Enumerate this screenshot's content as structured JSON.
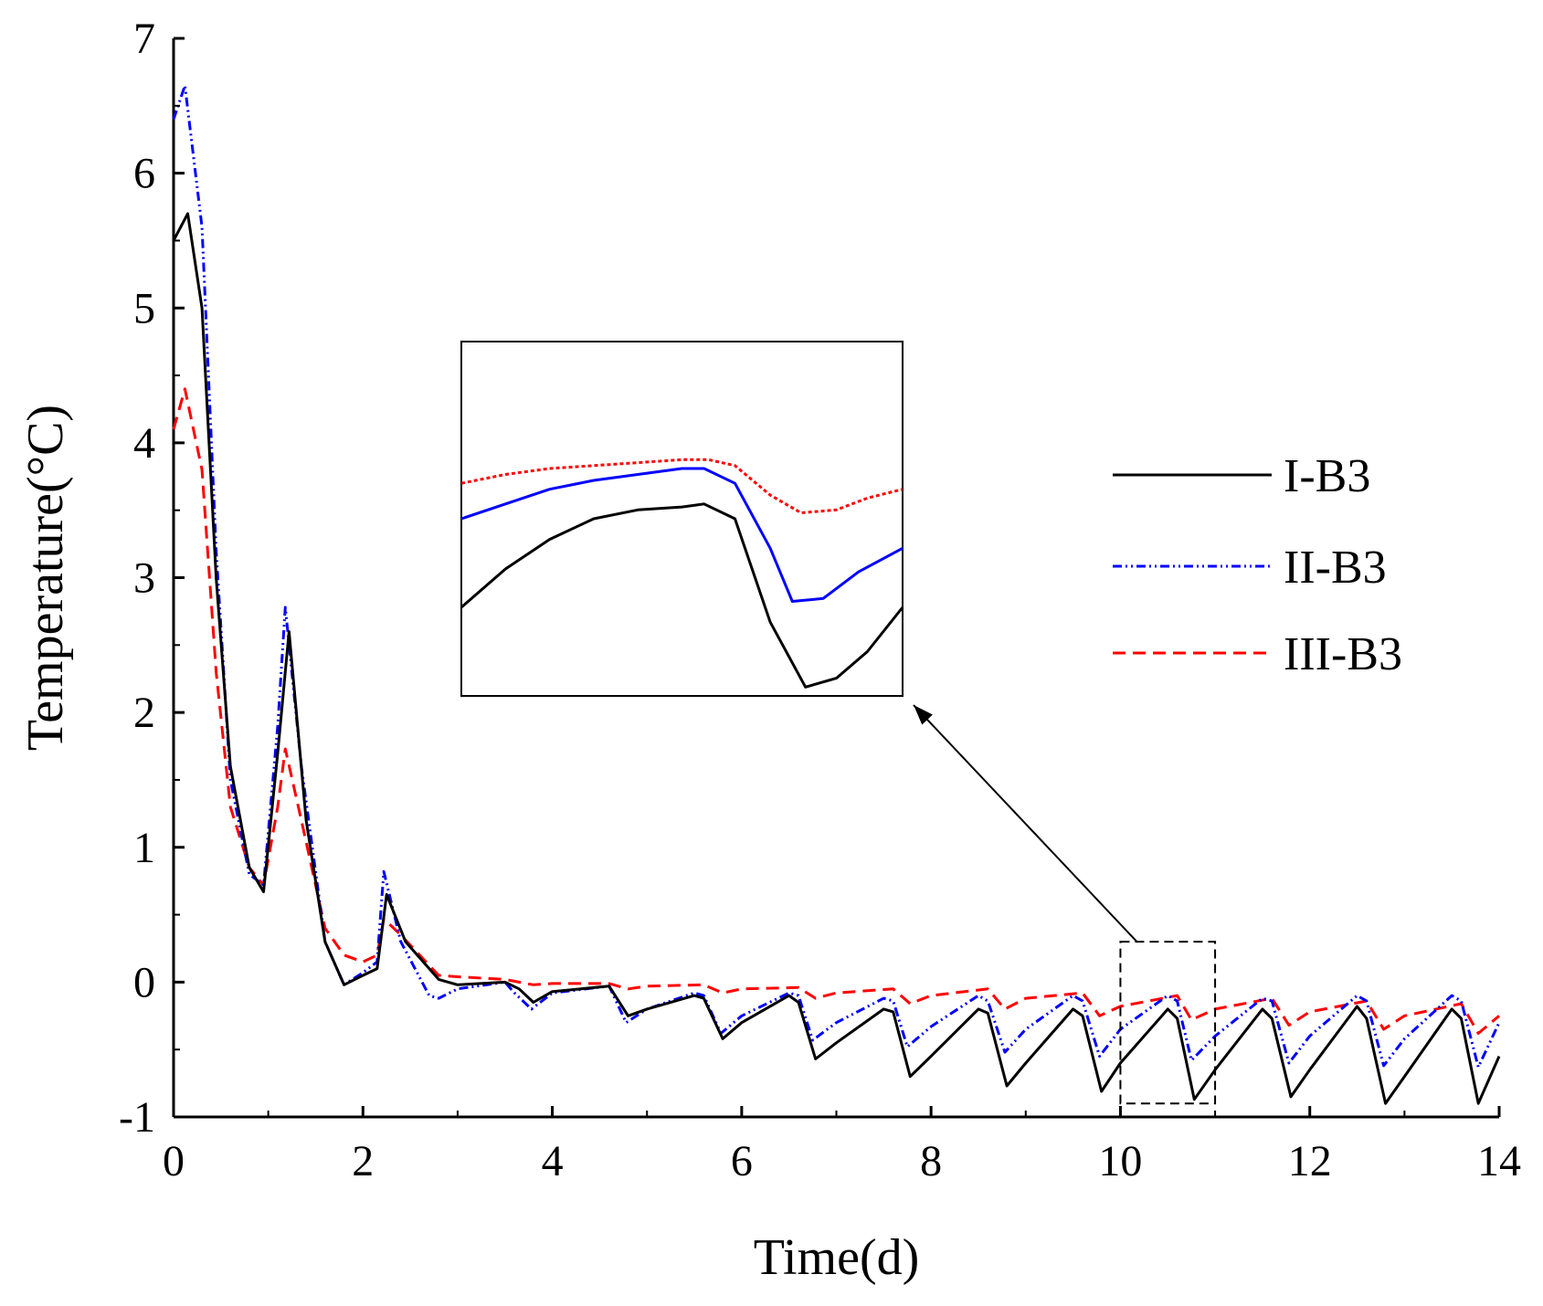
{
  "chart_data": {
    "type": "line",
    "title": "",
    "xlabel": "Time(d)",
    "ylabel": "Temperature(°C)",
    "xlim": [
      0,
      14
    ],
    "ylim": [
      -1,
      7
    ],
    "xticks": [
      "0",
      "2",
      "4",
      "6",
      "8",
      "10",
      "12",
      "14"
    ],
    "yticks": [
      "-1",
      "0",
      "1",
      "2",
      "3",
      "4",
      "5",
      "6",
      "7"
    ],
    "grid": false,
    "legend_position": "center-right",
    "series": [
      {
        "name": "I-B3",
        "color": "#000000",
        "style": "solid",
        "points": [
          [
            0,
            5.5
          ],
          [
            0.15,
            5.7
          ],
          [
            0.3,
            5.0
          ],
          [
            0.45,
            3.0
          ],
          [
            0.6,
            1.6
          ],
          [
            0.8,
            0.85
          ],
          [
            0.95,
            0.67
          ],
          [
            1.1,
            1.7
          ],
          [
            1.22,
            2.6
          ],
          [
            1.4,
            1.2
          ],
          [
            1.6,
            0.3
          ],
          [
            1.8,
            -0.02
          ],
          [
            2.0,
            0.05
          ],
          [
            2.15,
            0.1
          ],
          [
            2.25,
            0.65
          ],
          [
            2.45,
            0.3
          ],
          [
            2.8,
            0.02
          ],
          [
            3.0,
            -0.02
          ],
          [
            3.5,
            0.0
          ],
          [
            3.65,
            -0.05
          ],
          [
            3.8,
            -0.15
          ],
          [
            4.0,
            -0.07
          ],
          [
            4.6,
            -0.03
          ],
          [
            4.8,
            -0.25
          ],
          [
            5.0,
            -0.2
          ],
          [
            5.5,
            -0.1
          ],
          [
            5.6,
            -0.12
          ],
          [
            5.8,
            -0.42
          ],
          [
            6.0,
            -0.3
          ],
          [
            6.5,
            -0.1
          ],
          [
            6.6,
            -0.15
          ],
          [
            6.78,
            -0.57
          ],
          [
            7.0,
            -0.45
          ],
          [
            7.5,
            -0.2
          ],
          [
            7.6,
            -0.22
          ],
          [
            7.78,
            -0.7
          ],
          [
            8.0,
            -0.55
          ],
          [
            8.5,
            -0.2
          ],
          [
            8.6,
            -0.23
          ],
          [
            8.8,
            -0.77
          ],
          [
            9.0,
            -0.6
          ],
          [
            9.5,
            -0.2
          ],
          [
            9.6,
            -0.25
          ],
          [
            9.8,
            -0.81
          ],
          [
            10.0,
            -0.6
          ],
          [
            10.5,
            -0.2
          ],
          [
            10.6,
            -0.27
          ],
          [
            10.78,
            -0.87
          ],
          [
            11.0,
            -0.65
          ],
          [
            11.5,
            -0.2
          ],
          [
            11.6,
            -0.27
          ],
          [
            11.8,
            -0.85
          ],
          [
            12.0,
            -0.65
          ],
          [
            12.5,
            -0.18
          ],
          [
            12.6,
            -0.27
          ],
          [
            12.8,
            -0.9
          ],
          [
            13.0,
            -0.7
          ],
          [
            13.5,
            -0.2
          ],
          [
            13.6,
            -0.27
          ],
          [
            13.78,
            -0.9
          ],
          [
            14.0,
            -0.55
          ]
        ]
      },
      {
        "name": "II-B3",
        "color": "#0000ff",
        "style": "dash-dot-dot",
        "points": [
          [
            0,
            6.4
          ],
          [
            0.12,
            6.65
          ],
          [
            0.3,
            5.6
          ],
          [
            0.45,
            3.2
          ],
          [
            0.6,
            1.5
          ],
          [
            0.8,
            0.8
          ],
          [
            0.95,
            0.72
          ],
          [
            1.1,
            1.9
          ],
          [
            1.18,
            2.78
          ],
          [
            1.35,
            1.6
          ],
          [
            1.6,
            0.3
          ],
          [
            1.8,
            -0.02
          ],
          [
            2.0,
            0.07
          ],
          [
            2.15,
            0.15
          ],
          [
            2.22,
            0.82
          ],
          [
            2.4,
            0.3
          ],
          [
            2.7,
            -0.1
          ],
          [
            2.8,
            -0.12
          ],
          [
            3.0,
            -0.05
          ],
          [
            3.5,
            0.0
          ],
          [
            3.6,
            -0.08
          ],
          [
            3.78,
            -0.2
          ],
          [
            4.0,
            -0.08
          ],
          [
            4.6,
            -0.03
          ],
          [
            4.78,
            -0.3
          ],
          [
            5.0,
            -0.2
          ],
          [
            5.5,
            -0.08
          ],
          [
            5.6,
            -0.1
          ],
          [
            5.78,
            -0.38
          ],
          [
            6.0,
            -0.25
          ],
          [
            6.5,
            -0.08
          ],
          [
            6.6,
            -0.1
          ],
          [
            6.75,
            -0.43
          ],
          [
            7.0,
            -0.3
          ],
          [
            7.5,
            -0.12
          ],
          [
            7.6,
            -0.14
          ],
          [
            7.75,
            -0.48
          ],
          [
            8.0,
            -0.33
          ],
          [
            8.5,
            -0.1
          ],
          [
            8.6,
            -0.14
          ],
          [
            8.78,
            -0.52
          ],
          [
            9.0,
            -0.35
          ],
          [
            9.5,
            -0.1
          ],
          [
            9.6,
            -0.14
          ],
          [
            9.78,
            -0.55
          ],
          [
            10.0,
            -0.35
          ],
          [
            10.5,
            -0.1
          ],
          [
            10.6,
            -0.14
          ],
          [
            10.75,
            -0.58
          ],
          [
            11.0,
            -0.4
          ],
          [
            11.5,
            -0.12
          ],
          [
            11.6,
            -0.14
          ],
          [
            11.78,
            -0.6
          ],
          [
            12.0,
            -0.4
          ],
          [
            12.5,
            -0.1
          ],
          [
            12.6,
            -0.14
          ],
          [
            12.78,
            -0.62
          ],
          [
            13.0,
            -0.42
          ],
          [
            13.5,
            -0.1
          ],
          [
            13.6,
            -0.14
          ],
          [
            13.78,
            -0.63
          ],
          [
            14.0,
            -0.3
          ]
        ]
      },
      {
        "name": "III-B3",
        "color": "#ff0000",
        "style": "dashed",
        "points": [
          [
            0,
            4.1
          ],
          [
            0.12,
            4.4
          ],
          [
            0.3,
            3.8
          ],
          [
            0.45,
            2.3
          ],
          [
            0.6,
            1.3
          ],
          [
            0.8,
            0.85
          ],
          [
            0.95,
            0.72
          ],
          [
            1.1,
            1.3
          ],
          [
            1.18,
            1.73
          ],
          [
            1.35,
            1.2
          ],
          [
            1.6,
            0.4
          ],
          [
            1.8,
            0.2
          ],
          [
            2.0,
            0.15
          ],
          [
            2.15,
            0.2
          ],
          [
            2.22,
            0.47
          ],
          [
            2.4,
            0.35
          ],
          [
            2.8,
            0.05
          ],
          [
            3.0,
            0.04
          ],
          [
            3.5,
            0.02
          ],
          [
            3.8,
            -0.02
          ],
          [
            4.0,
            -0.01
          ],
          [
            4.6,
            -0.01
          ],
          [
            4.8,
            -0.05
          ],
          [
            5.0,
            -0.03
          ],
          [
            5.6,
            -0.02
          ],
          [
            5.8,
            -0.08
          ],
          [
            6.0,
            -0.05
          ],
          [
            6.6,
            -0.04
          ],
          [
            6.78,
            -0.12
          ],
          [
            7.0,
            -0.08
          ],
          [
            7.6,
            -0.05
          ],
          [
            7.78,
            -0.16
          ],
          [
            8.0,
            -0.1
          ],
          [
            8.6,
            -0.05
          ],
          [
            8.78,
            -0.2
          ],
          [
            9.0,
            -0.12
          ],
          [
            9.6,
            -0.08
          ],
          [
            9.78,
            -0.25
          ],
          [
            10.0,
            -0.18
          ],
          [
            10.6,
            -0.1
          ],
          [
            10.75,
            -0.28
          ],
          [
            11.0,
            -0.2
          ],
          [
            11.6,
            -0.12
          ],
          [
            11.78,
            -0.32
          ],
          [
            12.0,
            -0.22
          ],
          [
            12.6,
            -0.14
          ],
          [
            12.78,
            -0.35
          ],
          [
            13.0,
            -0.25
          ],
          [
            13.6,
            -0.16
          ],
          [
            13.78,
            -0.38
          ],
          [
            14.0,
            -0.25
          ]
        ]
      }
    ],
    "inset": {
      "source_x_range": [
        10.0,
        11.0
      ],
      "source_y_range": [
        -0.9,
        0.3
      ],
      "series": [
        {
          "name": "I-B3",
          "points": [
            [
              10.0,
              -0.6
            ],
            [
              10.1,
              -0.47
            ],
            [
              10.2,
              -0.37
            ],
            [
              10.3,
              -0.3
            ],
            [
              10.4,
              -0.27
            ],
            [
              10.5,
              -0.26
            ],
            [
              10.55,
              -0.25
            ],
            [
              10.62,
              -0.3
            ],
            [
              10.7,
              -0.65
            ],
            [
              10.78,
              -0.87
            ],
            [
              10.85,
              -0.84
            ],
            [
              10.92,
              -0.75
            ],
            [
              11.0,
              -0.6
            ]
          ]
        },
        {
          "name": "II-B3",
          "points": [
            [
              10.0,
              -0.3
            ],
            [
              10.1,
              -0.25
            ],
            [
              10.2,
              -0.2
            ],
            [
              10.3,
              -0.17
            ],
            [
              10.4,
              -0.15
            ],
            [
              10.5,
              -0.13
            ],
            [
              10.55,
              -0.13
            ],
            [
              10.62,
              -0.18
            ],
            [
              10.7,
              -0.4
            ],
            [
              10.75,
              -0.58
            ],
            [
              10.82,
              -0.57
            ],
            [
              10.9,
              -0.48
            ],
            [
              11.0,
              -0.4
            ]
          ]
        },
        {
          "name": "III-B3",
          "points": [
            [
              10.0,
              -0.18
            ],
            [
              10.1,
              -0.15
            ],
            [
              10.2,
              -0.13
            ],
            [
              10.3,
              -0.12
            ],
            [
              10.4,
              -0.11
            ],
            [
              10.5,
              -0.1
            ],
            [
              10.56,
              -0.1
            ],
            [
              10.62,
              -0.12
            ],
            [
              10.7,
              -0.22
            ],
            [
              10.77,
              -0.28
            ],
            [
              10.85,
              -0.27
            ],
            [
              10.92,
              -0.23
            ],
            [
              11.0,
              -0.2
            ]
          ]
        }
      ]
    }
  }
}
